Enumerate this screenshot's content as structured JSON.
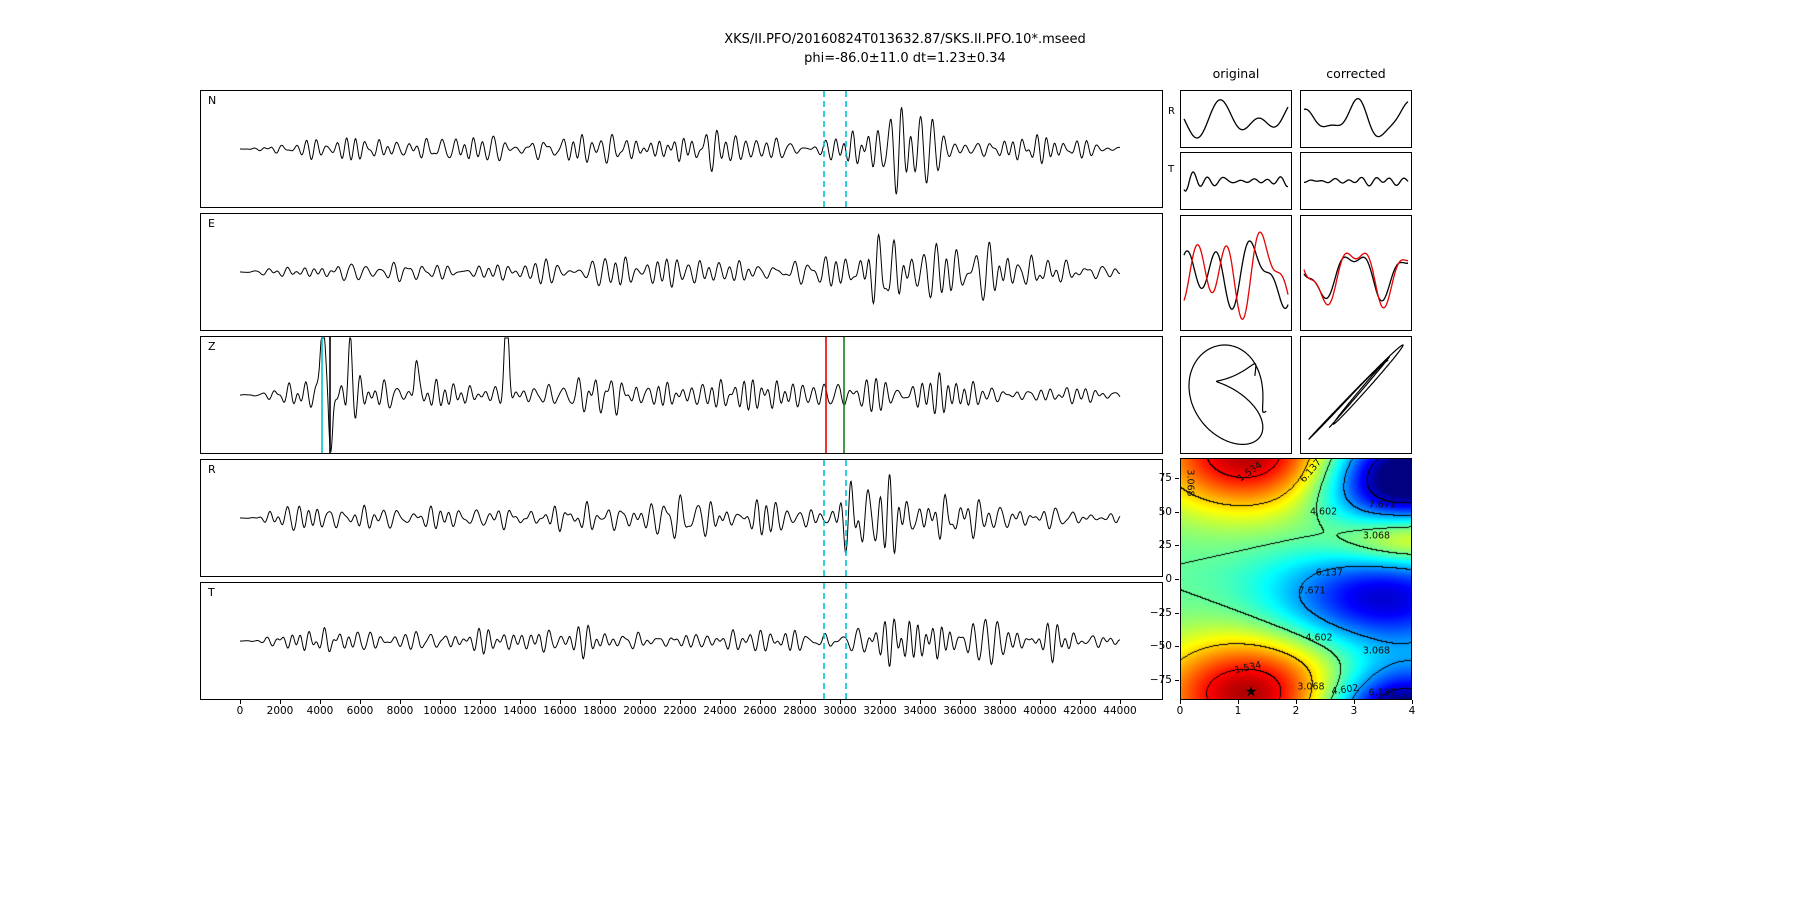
{
  "title": {
    "line1": "XKS/II.PFO/20160824T013632.87/SKS.II.PFO.10*.mseed",
    "line2": "phi=-86.0±11.0 dt=1.23±0.34"
  },
  "colors": {
    "trace": "#000000",
    "window_line": "#00c3cf",
    "pick_red": "#e60000",
    "pick_green": "#188018",
    "overlay_red": "#e60000"
  },
  "chart_data": {
    "type": "line",
    "title": "XKS/II.PFO/20160824T013632.87/SKS.II.PFO.10*.mseed",
    "subtitle": "phi=-86.0±11.0 dt=1.23±0.34",
    "phi": "-86.0±11.0",
    "dt": "1.23±0.34",
    "x_axis": {
      "min": 0,
      "max": 44000,
      "tick_step": 2000,
      "ticks": [
        "0",
        "2000",
        "4000",
        "6000",
        "8000",
        "10000",
        "12000",
        "14000",
        "16000",
        "18000",
        "20000",
        "22000",
        "24000",
        "26000",
        "28000",
        "30000",
        "32000",
        "34000",
        "36000",
        "38000",
        "40000",
        "42000",
        "44000"
      ]
    },
    "window_lines": {
      "start": 29200,
      "end": 30300,
      "color": "#00c3cf",
      "style": "dashed"
    },
    "panels": [
      {
        "label": "N",
        "seed": 11,
        "amp": 50,
        "fmin": 45,
        "fmax": 115,
        "envelope": [
          [
            0,
            0.0
          ],
          [
            0.02,
            0.05
          ],
          [
            0.045,
            0.28
          ],
          [
            0.09,
            0.45
          ],
          [
            0.2,
            0.4
          ],
          [
            0.35,
            0.44
          ],
          [
            0.5,
            0.46
          ],
          [
            0.6,
            0.42
          ],
          [
            0.665,
            0.46
          ],
          [
            0.695,
            0.8
          ],
          [
            0.73,
            1.0
          ],
          [
            0.775,
            0.95
          ],
          [
            0.82,
            0.65
          ],
          [
            0.88,
            0.5
          ],
          [
            0.95,
            0.35
          ],
          [
            1,
            0.12
          ]
        ],
        "markers": [
          {
            "x": 29200,
            "color": "#00c3cf",
            "dash": true
          },
          {
            "x": 30300,
            "color": "#00c3cf",
            "dash": true
          }
        ]
      },
      {
        "label": "E",
        "seed": 22,
        "amp": 46,
        "fmin": 45,
        "fmax": 115,
        "envelope": [
          [
            0,
            0.0
          ],
          [
            0.02,
            0.06
          ],
          [
            0.05,
            0.3
          ],
          [
            0.1,
            0.42
          ],
          [
            0.25,
            0.4
          ],
          [
            0.4,
            0.44
          ],
          [
            0.55,
            0.42
          ],
          [
            0.65,
            0.4
          ],
          [
            0.69,
            0.5
          ],
          [
            0.73,
            0.9
          ],
          [
            0.77,
            1.0
          ],
          [
            0.82,
            0.75
          ],
          [
            0.88,
            0.55
          ],
          [
            0.95,
            0.4
          ],
          [
            1,
            0.14
          ]
        ],
        "markers": []
      },
      {
        "label": "Z",
        "seed": 33,
        "amp": 44,
        "fmin": 45,
        "fmax": 115,
        "envelope": [
          [
            0,
            0.0
          ],
          [
            0.025,
            0.1
          ],
          [
            0.06,
            0.55
          ],
          [
            0.1,
            0.68
          ],
          [
            0.14,
            0.6
          ],
          [
            0.22,
            0.52
          ],
          [
            0.35,
            0.5
          ],
          [
            0.5,
            0.46
          ],
          [
            0.62,
            0.44
          ],
          [
            0.68,
            0.52
          ],
          [
            0.73,
            0.56
          ],
          [
            0.8,
            0.5
          ],
          [
            0.9,
            0.44
          ],
          [
            1,
            0.14
          ]
        ],
        "spikes": [
          {
            "x": 0.094,
            "a": 1.7,
            "w": 0.004
          },
          {
            "x": 0.103,
            "a": -1.25,
            "w": 0.003
          },
          {
            "x": 0.125,
            "a": 0.95,
            "w": 0.003
          },
          {
            "x": 0.2,
            "a": 0.8,
            "w": 0.003
          },
          {
            "x": 0.303,
            "a": 1.8,
            "w": 0.0035
          }
        ],
        "markers": [
          {
            "x": 4100,
            "color": "#00c3cf",
            "dash": false
          },
          {
            "x": 4500,
            "color": "#000000",
            "dash": false
          },
          {
            "x": 29300,
            "color": "#e60000",
            "dash": false
          },
          {
            "x": 30200,
            "color": "#188018",
            "dash": false
          }
        ]
      },
      {
        "label": "R",
        "seed": 47,
        "amp": 50,
        "fmin": 45,
        "fmax": 115,
        "envelope": [
          [
            0,
            0.0
          ],
          [
            0.02,
            0.05
          ],
          [
            0.045,
            0.28
          ],
          [
            0.09,
            0.45
          ],
          [
            0.2,
            0.4
          ],
          [
            0.35,
            0.44
          ],
          [
            0.5,
            0.46
          ],
          [
            0.6,
            0.42
          ],
          [
            0.665,
            0.46
          ],
          [
            0.695,
            0.8
          ],
          [
            0.73,
            1.0
          ],
          [
            0.775,
            0.95
          ],
          [
            0.82,
            0.65
          ],
          [
            0.88,
            0.5
          ],
          [
            0.95,
            0.35
          ],
          [
            1,
            0.12
          ]
        ],
        "markers": [
          {
            "x": 29200,
            "color": "#00c3cf",
            "dash": true
          },
          {
            "x": 30300,
            "color": "#00c3cf",
            "dash": true
          }
        ]
      },
      {
        "label": "T",
        "seed": 55,
        "amp": 46,
        "fmin": 45,
        "fmax": 115,
        "envelope": [
          [
            0,
            0.0
          ],
          [
            0.02,
            0.05
          ],
          [
            0.05,
            0.3
          ],
          [
            0.12,
            0.4
          ],
          [
            0.3,
            0.38
          ],
          [
            0.5,
            0.42
          ],
          [
            0.62,
            0.38
          ],
          [
            0.68,
            0.42
          ],
          [
            0.71,
            0.8
          ],
          [
            0.75,
            1.0
          ],
          [
            0.8,
            0.85
          ],
          [
            0.86,
            0.6
          ],
          [
            0.93,
            0.45
          ],
          [
            1,
            0.15
          ]
        ],
        "markers": [
          {
            "x": 29200,
            "color": "#00c3cf",
            "dash": true
          },
          {
            "x": 30300,
            "color": "#00c3cf",
            "dash": true
          }
        ]
      }
    ],
    "right_panels": {
      "headers": [
        "original",
        "corrected"
      ],
      "r_row": {
        "label": "R",
        "orig": {
          "seed": 101,
          "fmin": 1.3,
          "fmax": 4.2,
          "ncomp": 6,
          "amp": 0.8
        },
        "corr": {
          "seed": 103,
          "fmin": 1.3,
          "fmax": 4.2,
          "ncomp": 6,
          "amp": 0.85
        }
      },
      "t_row": {
        "label": "T",
        "orig": {
          "seed": 102,
          "fmin": 3,
          "fmax": 8,
          "ncomp": 8,
          "amp": 0.42
        },
        "corr": {
          "seed": 104,
          "fmin": 3,
          "fmax": 8,
          "ncomp": 8,
          "amp": 0.2
        }
      },
      "overlay": {
        "orig": {
          "seed": 105,
          "fmin": 1.8,
          "fmax": 5.5,
          "ncomp": 8,
          "black_amp": 0.72,
          "red_amp": 0.92,
          "lag": 0.1
        },
        "corr": {
          "seed": 106,
          "fmin": 1.8,
          "fmax": 5.5,
          "ncomp": 8,
          "black_amp": 0.72,
          "red_amp": 0.9,
          "lag": 0.015
        }
      },
      "particle_motion": {
        "orig": {
          "seed_x": 107,
          "seed_y": 108,
          "linearity": 0.1
        },
        "corr": {
          "seed_x": 109,
          "seed_y": 110,
          "linearity": 0.82
        }
      }
    },
    "energy_map": {
      "x_ticks": [
        "0",
        "1",
        "2",
        "3",
        "4"
      ],
      "x_tick_values": [
        0,
        1,
        2,
        3,
        4
      ],
      "y_ticks": [
        "75",
        "50",
        "25",
        "0",
        "−25",
        "−50",
        "−75"
      ],
      "y_tick_values": [
        75,
        50,
        25,
        0,
        -25,
        -50,
        -75
      ],
      "x_range": [
        0,
        4
      ],
      "phi_range": [
        -90,
        90
      ],
      "levels": [
        1.534,
        3.068,
        4.602,
        6.137,
        7.671
      ],
      "colormap": "jet_r",
      "base": 4.6,
      "vmin": 0.5,
      "vmax": 8.3,
      "best": {
        "dt": 1.23,
        "phi": -86,
        "marker": "★"
      },
      "blobs": [
        {
          "phi": -86,
          "x": 1.2,
          "amp": -3.8,
          "sx": 1.15,
          "sp": 30
        },
        {
          "phi": -15,
          "x": 3.5,
          "amp": 3.1,
          "sx": 1.3,
          "sp": 26
        },
        {
          "phi": 68,
          "x": 3.9,
          "amp": 3.6,
          "sx": 1.0,
          "sp": 22
        },
        {
          "phi": 30,
          "x": 4.0,
          "amp": -2.2,
          "sx": 0.9,
          "sp": 14
        },
        {
          "phi": -86,
          "x": 3.8,
          "amp": 1.8,
          "sx": 0.9,
          "sp": 20
        }
      ],
      "labels": [
        {
          "text": "1.534",
          "fx": 0.3,
          "fy": 0.055,
          "rot": -35
        },
        {
          "text": "6.137",
          "fx": 0.565,
          "fy": 0.05,
          "rot": -50
        },
        {
          "text": "3.068",
          "fx": 0.04,
          "fy": 0.1,
          "rot": 90
        },
        {
          "text": "4.602",
          "fx": 0.62,
          "fy": 0.22,
          "rot": 0
        },
        {
          "text": "7.671",
          "fx": 0.875,
          "fy": 0.19,
          "rot": 0
        },
        {
          "text": "3.068",
          "fx": 0.85,
          "fy": 0.32,
          "rot": 0
        },
        {
          "text": "6.137",
          "fx": 0.645,
          "fy": 0.475,
          "rot": 0
        },
        {
          "text": "7.671",
          "fx": 0.57,
          "fy": 0.55,
          "rot": 0
        },
        {
          "text": "4.602",
          "fx": 0.6,
          "fy": 0.745,
          "rot": 0
        },
        {
          "text": "3.068",
          "fx": 0.85,
          "fy": 0.8,
          "rot": 0
        },
        {
          "text": "1.534",
          "fx": 0.29,
          "fy": 0.87,
          "rot": -12
        },
        {
          "text": "3.068",
          "fx": 0.565,
          "fy": 0.95,
          "rot": 0
        },
        {
          "text": "4.602",
          "fx": 0.715,
          "fy": 0.962,
          "rot": -8
        },
        {
          "text": "6.137",
          "fx": 0.875,
          "fy": 0.975,
          "rot": 0
        }
      ]
    }
  }
}
